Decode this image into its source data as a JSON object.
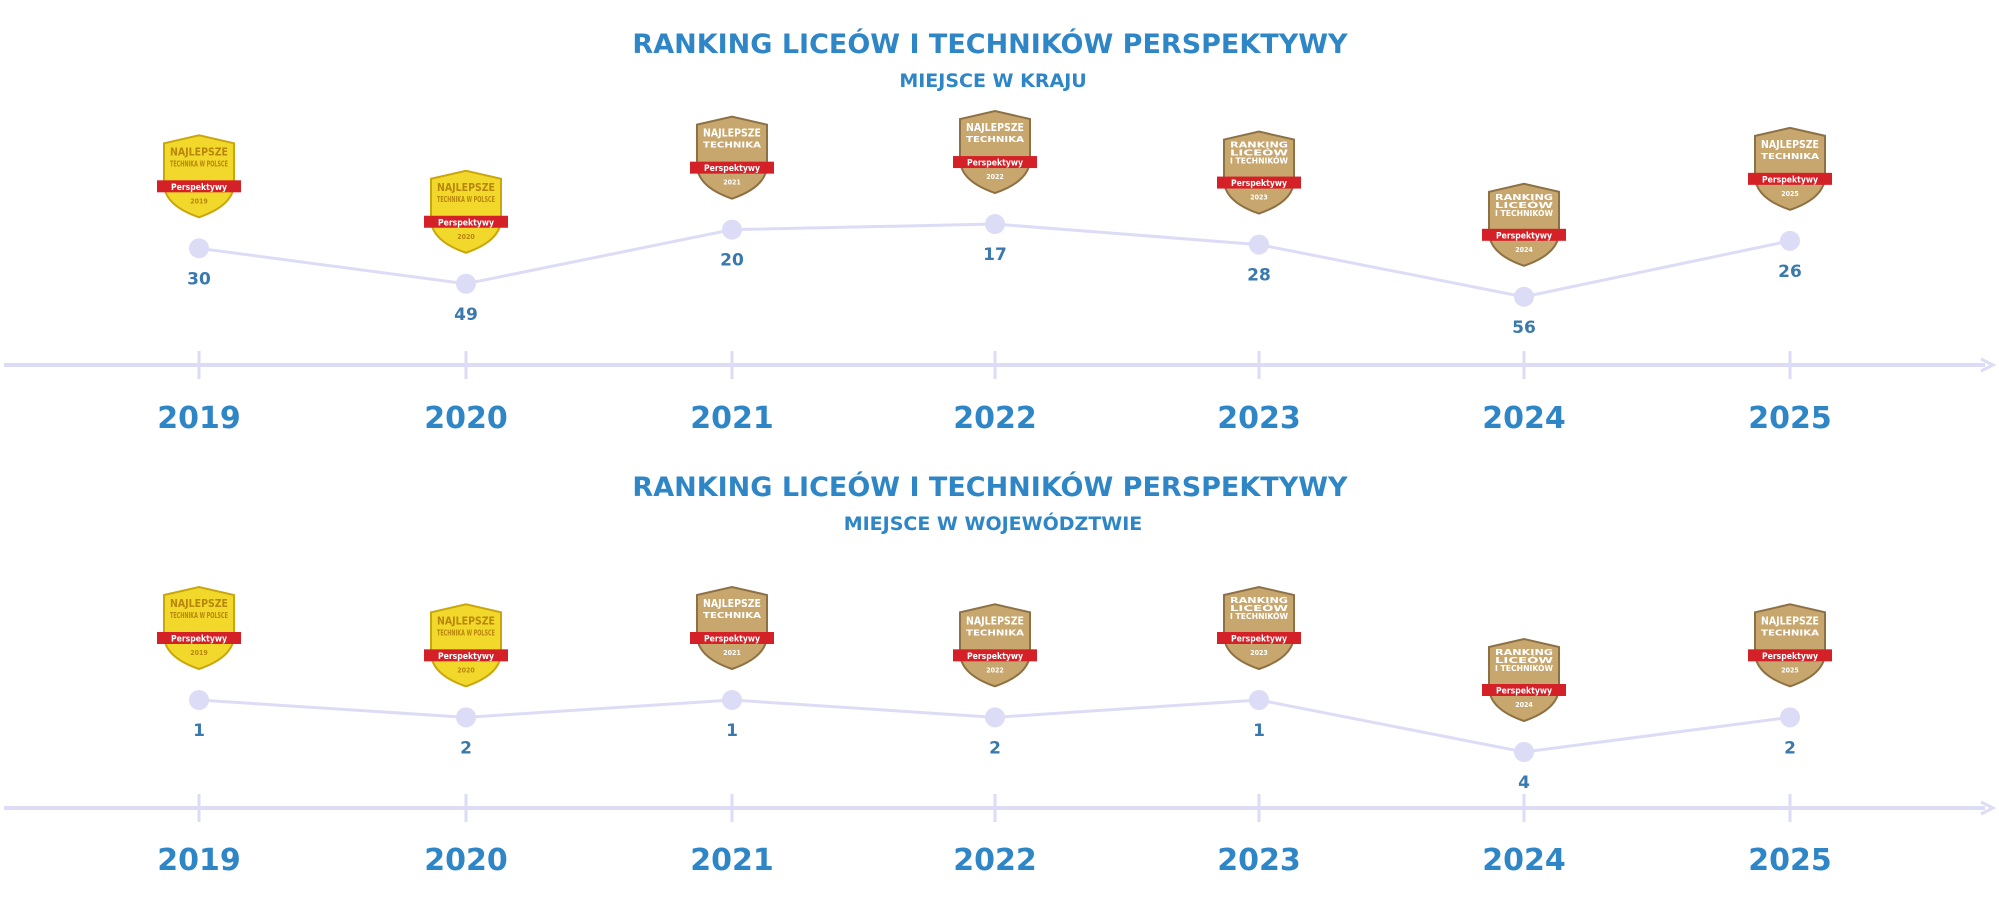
{
  "colors": {
    "title": "#2f86c6",
    "line": "#dcdcf7",
    "point": "#dcdcf7",
    "axis": "#dcdcf7",
    "value_text": "#3a79ad",
    "gold_badge": "#f2d82b",
    "bronze_badge": "#c8a76e",
    "badge_ribbon": "#d42027"
  },
  "chart_data": [
    {
      "type": "line",
      "title": "RANKING LICEÓW I TECHNIKÓW PERSPEKTYWY",
      "subtitle": "MIEJSCE W  KRAJU",
      "x": [
        "2019",
        "2020",
        "2021",
        "2022",
        "2023",
        "2024",
        "2025"
      ],
      "values": [
        30,
        49,
        20,
        17,
        28,
        56,
        26
      ],
      "y_inverted": true,
      "ylim": [
        10,
        62
      ],
      "badges": [
        {
          "style": "gold",
          "icon": "najlepsze-technika-w-polsce-badge-icon",
          "lines": [
            "NAJLEPSZE",
            "TECHNIKA W POLSCE"
          ],
          "ribbon": "Perspektywy",
          "footer": "2019"
        },
        {
          "style": "gold",
          "icon": "najlepsze-technika-w-polsce-badge-icon",
          "lines": [
            "NAJLEPSZE",
            "TECHNIKA W POLSCE"
          ],
          "ribbon": "Perspektywy",
          "footer": "2020"
        },
        {
          "style": "bronze",
          "icon": "najlepsze-technika-badge-icon",
          "lines": [
            "NAJLEPSZE",
            "TECHNIKA"
          ],
          "ribbon": "Perspektywy",
          "footer": "2021"
        },
        {
          "style": "bronze",
          "icon": "najlepsze-technika-badge-icon",
          "lines": [
            "NAJLEPSZE",
            "TECHNIKA"
          ],
          "ribbon": "Perspektywy",
          "footer": "2022"
        },
        {
          "style": "bronze",
          "icon": "ranking-liceow-i-technikow-badge-icon",
          "lines": [
            "RANKING",
            "LICEÓW",
            "I TECHNIKÓW"
          ],
          "ribbon": "Perspektywy",
          "footer": "2023"
        },
        {
          "style": "bronze",
          "icon": "ranking-liceow-i-technikow-badge-icon",
          "lines": [
            "RANKING",
            "LICEÓW",
            "I TECHNIKÓW"
          ],
          "ribbon": "Perspektywy",
          "footer": "2024"
        },
        {
          "style": "bronze",
          "icon": "najlepsze-technika-badge-icon",
          "lines": [
            "NAJLEPSZE",
            "TECHNIKA"
          ],
          "ribbon": "Perspektywy",
          "footer": "2025"
        }
      ]
    },
    {
      "type": "line",
      "title": "RANKING LICEÓW I TECHNIKÓW PERSPEKTYWY",
      "subtitle": "MIEJSCE W WOJEWÓDZTWIE",
      "x": [
        "2019",
        "2020",
        "2021",
        "2022",
        "2023",
        "2024",
        "2025"
      ],
      "values": [
        1,
        2,
        1,
        2,
        1,
        4,
        2
      ],
      "y_inverted": true,
      "ylim": [
        1,
        4
      ],
      "badges": [
        {
          "style": "gold",
          "icon": "najlepsze-technika-w-polsce-badge-icon",
          "lines": [
            "NAJLEPSZE",
            "TECHNIKA W POLSCE"
          ],
          "ribbon": "Perspektywy",
          "footer": "2019"
        },
        {
          "style": "gold",
          "icon": "najlepsze-technika-w-polsce-badge-icon",
          "lines": [
            "NAJLEPSZE",
            "TECHNIKA W POLSCE"
          ],
          "ribbon": "Perspektywy",
          "footer": "2020"
        },
        {
          "style": "bronze",
          "icon": "najlepsze-technika-badge-icon",
          "lines": [
            "NAJLEPSZE",
            "TECHNIKA"
          ],
          "ribbon": "Perspektywy",
          "footer": "2021"
        },
        {
          "style": "bronze",
          "icon": "najlepsze-technika-badge-icon",
          "lines": [
            "NAJLEPSZE",
            "TECHNIKA"
          ],
          "ribbon": "Perspektywy",
          "footer": "2022"
        },
        {
          "style": "bronze",
          "icon": "ranking-liceow-i-technikow-badge-icon",
          "lines": [
            "RANKING",
            "LICEÓW",
            "I TECHNIKÓW"
          ],
          "ribbon": "Perspektywy",
          "footer": "2023"
        },
        {
          "style": "bronze",
          "icon": "ranking-liceow-i-technikow-badge-icon",
          "lines": [
            "RANKING",
            "LICEÓW",
            "I TECHNIKÓW"
          ],
          "ribbon": "Perspektywy",
          "footer": "2024"
        },
        {
          "style": "bronze",
          "icon": "najlepsze-technika-badge-icon",
          "lines": [
            "NAJLEPSZE",
            "TECHNIKA"
          ],
          "ribbon": "Perspektywy",
          "footer": "2025"
        }
      ]
    }
  ]
}
